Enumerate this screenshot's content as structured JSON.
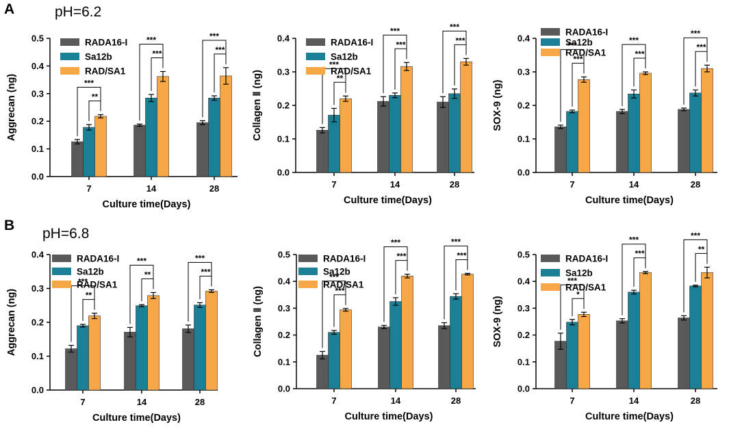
{
  "panels": [
    {
      "letter": "A",
      "ph": "pH=6.2"
    },
    {
      "letter": "B",
      "ph": "pH=6.8"
    }
  ],
  "colors": {
    "RADA16-I": "#595959",
    "Sa12b": "#1b7f95",
    "RAD/SA1": "#f7a746"
  },
  "chart_data": [
    {
      "type": "bar",
      "title": "",
      "xlabel": "Culture time(Days)",
      "ylabel": "Aggrecan (ng)",
      "categories": [
        "7",
        "14",
        "28"
      ],
      "ylim": [
        0,
        0.5
      ],
      "yticks": [
        "0.0",
        "0.1",
        "0.2",
        "0.3",
        "0.4",
        "0.5"
      ],
      "legend_labels": [
        "RADA16-I",
        "Sa12b",
        "RAD/SA1"
      ],
      "series": [
        {
          "name": "RADA16-I",
          "values": [
            0.126,
            0.186,
            0.195
          ],
          "errors": [
            0.008,
            0.004,
            0.007
          ]
        },
        {
          "name": "Sa12b",
          "values": [
            0.178,
            0.284,
            0.284
          ],
          "errors": [
            0.01,
            0.013,
            0.008
          ]
        },
        {
          "name": "RAD/SA1",
          "values": [
            0.218,
            0.362,
            0.364
          ],
          "errors": [
            0.006,
            0.018,
            0.03
          ]
        }
      ],
      "annotations": [
        {
          "category": 0,
          "pair": "1-3",
          "label": "***"
        },
        {
          "category": 0,
          "pair": "2-3",
          "label": "**"
        },
        {
          "category": 1,
          "pair": "1-3",
          "label": "***"
        },
        {
          "category": 1,
          "pair": "2-3",
          "label": "***"
        },
        {
          "category": 2,
          "pair": "1-3",
          "label": "***"
        },
        {
          "category": 2,
          "pair": "2-3",
          "label": "***"
        }
      ]
    },
    {
      "type": "bar",
      "title": "",
      "xlabel": "Culture time(Days)",
      "ylabel": "Collagen Ⅱ (ng)",
      "categories": [
        "7",
        "14",
        "28"
      ],
      "ylim": [
        0,
        0.4
      ],
      "yticks": [
        "0.0",
        "0.1",
        "0.2",
        "0.3",
        "0.4"
      ],
      "legend_labels": [
        "RADA16-I",
        "Sa12b",
        "RAD/SA1"
      ],
      "series": [
        {
          "name": "RADA16-I",
          "values": [
            0.126,
            0.212,
            0.21
          ],
          "errors": [
            0.008,
            0.014,
            0.016
          ]
        },
        {
          "name": "Sa12b",
          "values": [
            0.171,
            0.23,
            0.235
          ],
          "errors": [
            0.02,
            0.007,
            0.014
          ]
        },
        {
          "name": "RAD/SA1",
          "values": [
            0.22,
            0.316,
            0.33
          ],
          "errors": [
            0.008,
            0.012,
            0.01
          ]
        }
      ],
      "annotations": [
        {
          "category": 0,
          "pair": "1-3",
          "label": "***"
        },
        {
          "category": 0,
          "pair": "2-3",
          "label": "**"
        },
        {
          "category": 1,
          "pair": "1-3",
          "label": "***"
        },
        {
          "category": 1,
          "pair": "2-3",
          "label": "***"
        },
        {
          "category": 2,
          "pair": "1-3",
          "label": "***"
        },
        {
          "category": 2,
          "pair": "2-3",
          "label": "***"
        }
      ]
    },
    {
      "type": "bar",
      "title": "",
      "xlabel": "Culture time(Days)",
      "ylabel": "SOX-9 (ng)",
      "categories": [
        "7",
        "14",
        "28"
      ],
      "ylim": [
        0,
        0.4
      ],
      "yticks": [
        "0.0",
        "0.1",
        "0.2",
        "0.3",
        "0.4"
      ],
      "legend_labels": [
        "RADA16-I",
        "Sa12b",
        "RAD/SA1"
      ],
      "series": [
        {
          "name": "RADA16-I",
          "values": [
            0.136,
            0.182,
            0.188
          ],
          "errors": [
            0.005,
            0.006,
            0.004
          ]
        },
        {
          "name": "Sa12b",
          "values": [
            0.182,
            0.234,
            0.237
          ],
          "errors": [
            0.004,
            0.012,
            0.009
          ]
        },
        {
          "name": "RAD/SA1",
          "values": [
            0.277,
            0.296,
            0.31
          ],
          "errors": [
            0.008,
            0.004,
            0.01
          ]
        }
      ],
      "annotations": [
        {
          "category": 0,
          "pair": "1-3",
          "label": "***"
        },
        {
          "category": 0,
          "pair": "2-3",
          "label": "***"
        },
        {
          "category": 1,
          "pair": "1-3",
          "label": "***"
        },
        {
          "category": 1,
          "pair": "2-3",
          "label": "***"
        },
        {
          "category": 2,
          "pair": "1-3",
          "label": "***"
        },
        {
          "category": 2,
          "pair": "2-3",
          "label": "***"
        }
      ]
    },
    {
      "type": "bar",
      "title": "",
      "xlabel": "Culture time(Days)",
      "ylabel": "Aggrecan (ng)",
      "categories": [
        "7",
        "14",
        "28"
      ],
      "ylim": [
        0,
        0.4
      ],
      "yticks": [
        "0.0",
        "0.1",
        "0.2",
        "0.3",
        "0.4"
      ],
      "legend_labels": [
        "RADA16-I",
        "Sa12b",
        "RAD/SA1"
      ],
      "series": [
        {
          "name": "RADA16-I",
          "values": [
            0.122,
            0.171,
            0.181
          ],
          "errors": [
            0.01,
            0.014,
            0.011
          ]
        },
        {
          "name": "Sa12b",
          "values": [
            0.19,
            0.249,
            0.251
          ],
          "errors": [
            0.004,
            0.003,
            0.007
          ]
        },
        {
          "name": "RAD/SA1",
          "values": [
            0.219,
            0.279,
            0.292
          ],
          "errors": [
            0.008,
            0.009,
            0.004
          ]
        }
      ],
      "annotations": [
        {
          "category": 0,
          "pair": "1-3",
          "label": "***"
        },
        {
          "category": 0,
          "pair": "2-3",
          "label": "**"
        },
        {
          "category": 1,
          "pair": "1-3",
          "label": "***"
        },
        {
          "category": 1,
          "pair": "2-3",
          "label": "**"
        },
        {
          "category": 2,
          "pair": "1-3",
          "label": "***"
        },
        {
          "category": 2,
          "pair": "2-3",
          "label": "***"
        }
      ]
    },
    {
      "type": "bar",
      "title": "",
      "xlabel": "Culture time(Days)",
      "ylabel": "Collagen Ⅱ (ng)",
      "categories": [
        "7",
        "14",
        "28"
      ],
      "ylim": [
        0,
        0.5
      ],
      "yticks": [
        "0.0",
        "0.1",
        "0.2",
        "0.3",
        "0.4",
        "0.5"
      ],
      "legend_labels": [
        "RADA16-I",
        "Sa12b",
        "RAD/SA1"
      ],
      "series": [
        {
          "name": "RADA16-I",
          "values": [
            0.125,
            0.23,
            0.235
          ],
          "errors": [
            0.014,
            0.006,
            0.011
          ]
        },
        {
          "name": "Sa12b",
          "values": [
            0.21,
            0.325,
            0.344
          ],
          "errors": [
            0.007,
            0.014,
            0.01
          ]
        },
        {
          "name": "RAD/SA1",
          "values": [
            0.294,
            0.42,
            0.427
          ],
          "errors": [
            0.005,
            0.007,
            0.003
          ]
        }
      ],
      "annotations": [
        {
          "category": 0,
          "pair": "1-3",
          "label": "***"
        },
        {
          "category": 0,
          "pair": "2-3",
          "label": "***"
        },
        {
          "category": 1,
          "pair": "1-3",
          "label": "***"
        },
        {
          "category": 1,
          "pair": "2-3",
          "label": "***"
        },
        {
          "category": 2,
          "pair": "1-3",
          "label": "***"
        },
        {
          "category": 2,
          "pair": "2-3",
          "label": "***"
        }
      ]
    },
    {
      "type": "bar",
      "title": "",
      "xlabel": "Culture time(Days)",
      "ylabel": "SOX-9 (ng)",
      "categories": [
        "7",
        "14",
        "28"
      ],
      "ylim": [
        0,
        0.5
      ],
      "yticks": [
        "0.0",
        "0.1",
        "0.2",
        "0.3",
        "0.4",
        "0.5"
      ],
      "legend_labels": [
        "RADA16-I",
        "Sa12b",
        "RAD/SA1"
      ],
      "series": [
        {
          "name": "RADA16-I",
          "values": [
            0.177,
            0.253,
            0.264
          ],
          "errors": [
            0.03,
            0.008,
            0.008
          ]
        },
        {
          "name": "Sa12b",
          "values": [
            0.248,
            0.36,
            0.383
          ],
          "errors": [
            0.01,
            0.007,
            0.003
          ]
        },
        {
          "name": "RAD/SA1",
          "values": [
            0.277,
            0.433,
            0.433
          ],
          "errors": [
            0.008,
            0.004,
            0.02
          ]
        }
      ],
      "annotations": [
        {
          "category": 0,
          "pair": "1-3",
          "label": "***"
        },
        {
          "category": 0,
          "pair": "2-3",
          "label": "*"
        },
        {
          "category": 1,
          "pair": "1-3",
          "label": "***"
        },
        {
          "category": 1,
          "pair": "2-3",
          "label": "***"
        },
        {
          "category": 2,
          "pair": "1-3",
          "label": "***"
        },
        {
          "category": 2,
          "pair": "2-3",
          "label": "**"
        }
      ]
    }
  ]
}
